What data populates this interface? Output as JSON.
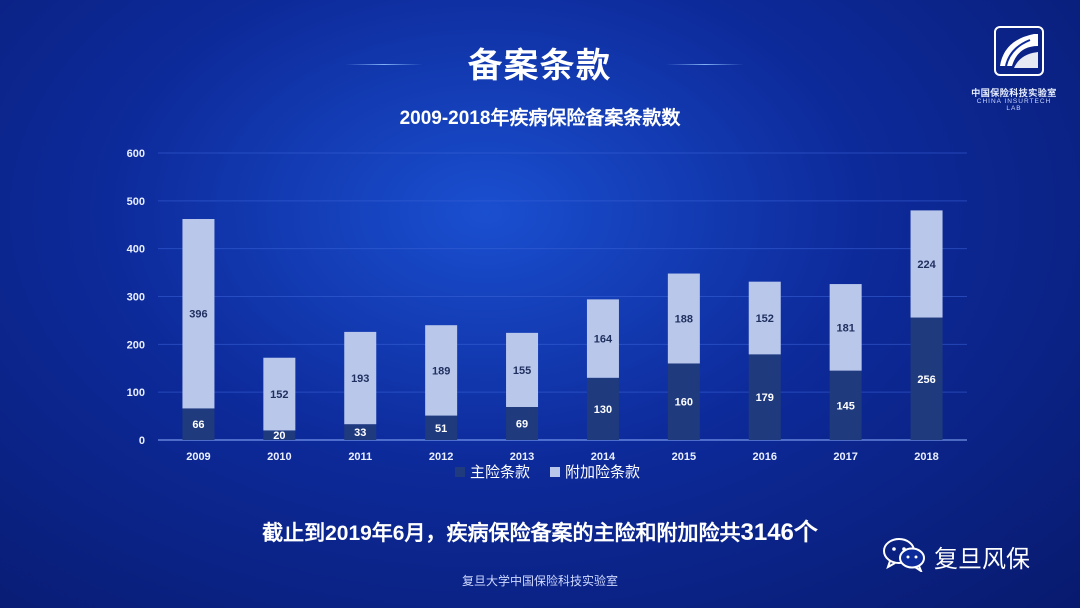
{
  "header": {
    "title": "备案条款"
  },
  "logo": {
    "name_cn": "中国保险科技实验室",
    "name_en": "CHINA INSURTECH LAB"
  },
  "colors": {
    "main_series": "#1f3a7d",
    "rider_series": "#b9c7eb",
    "axis": "#8fb0ff"
  },
  "chart_data": {
    "type": "bar",
    "stacked": true,
    "title": "2009-2018年疾病保险备案条款数",
    "xlabel": "",
    "ylabel": "",
    "categories": [
      "2009",
      "2010",
      "2011",
      "2012",
      "2013",
      "2014",
      "2015",
      "2016",
      "2017",
      "2018"
    ],
    "series": [
      {
        "name": "主险条款",
        "values": [
          66,
          20,
          33,
          51,
          69,
          130,
          160,
          179,
          145,
          256
        ]
      },
      {
        "name": "附加险条款",
        "values": [
          396,
          152,
          193,
          189,
          155,
          164,
          188,
          152,
          181,
          224
        ]
      }
    ],
    "ylim": [
      0,
      600
    ],
    "yticks": [
      0,
      100,
      200,
      300,
      400,
      500,
      600
    ],
    "grid": true,
    "legend_position": "bottom"
  },
  "footnote": {
    "prefix": "截止到2019年6月，疾病保险备案的主险和附加险共",
    "total": "3146个"
  },
  "wechat": {
    "account_name": "复旦风保",
    "icon": "wechat-icon"
  },
  "source": "复旦大学中国保险科技实验室"
}
